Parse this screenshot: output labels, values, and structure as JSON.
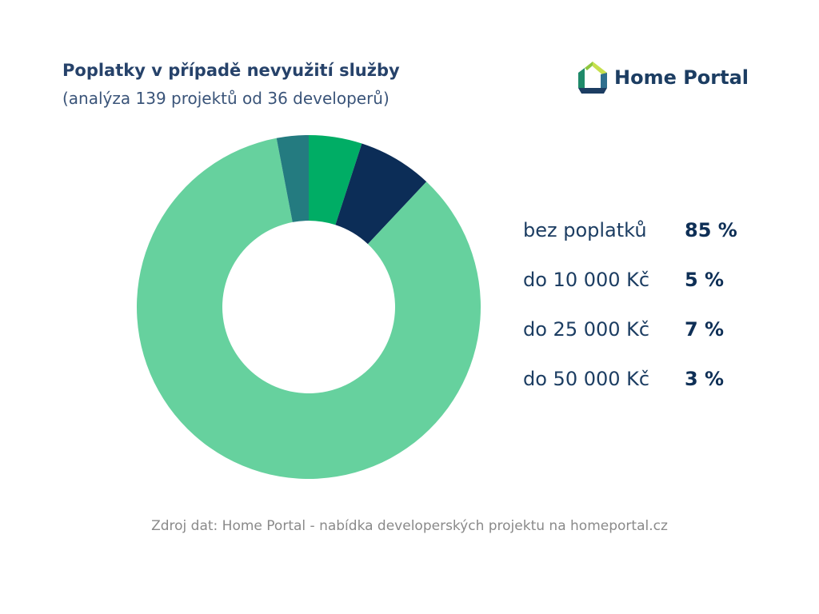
{
  "header": {
    "title": "Poplatky v případě nevyužití služby",
    "subtitle": "(analýza 139 projektů od 36 developerů)"
  },
  "logo": {
    "text": "Home Portal",
    "icon": "home-portal-house-icon"
  },
  "colors": {
    "bez_poplatku": "#66d19e",
    "do_10000": "#00ad65",
    "do_25000": "#0c2d57",
    "do_50000": "#247b80",
    "title": "#26426a",
    "source": "#8a8a8a"
  },
  "chart_data": {
    "type": "pie",
    "style": "donut",
    "categories": [
      "bez poplatků",
      "do 10 000 Kč",
      "do 25 000 Kč",
      "do 50 000 Kč"
    ],
    "values": [
      85,
      5,
      7,
      3
    ],
    "value_labels": [
      "85 %",
      "5 %",
      "7 %",
      "3 %"
    ],
    "colors": [
      "#66d19e",
      "#00ad65",
      "#0c2d57",
      "#247b80"
    ],
    "title": "Poplatky v případě nevyužití služby",
    "subtitle": "(analýza 139 projektů od 36 developerů)",
    "legend_placement": "right",
    "start_angle_deg": 0,
    "direction": "clockwise"
  },
  "source": "Zdroj dat: Home Portal - nabídka developerských projektu na homeportal.cz"
}
